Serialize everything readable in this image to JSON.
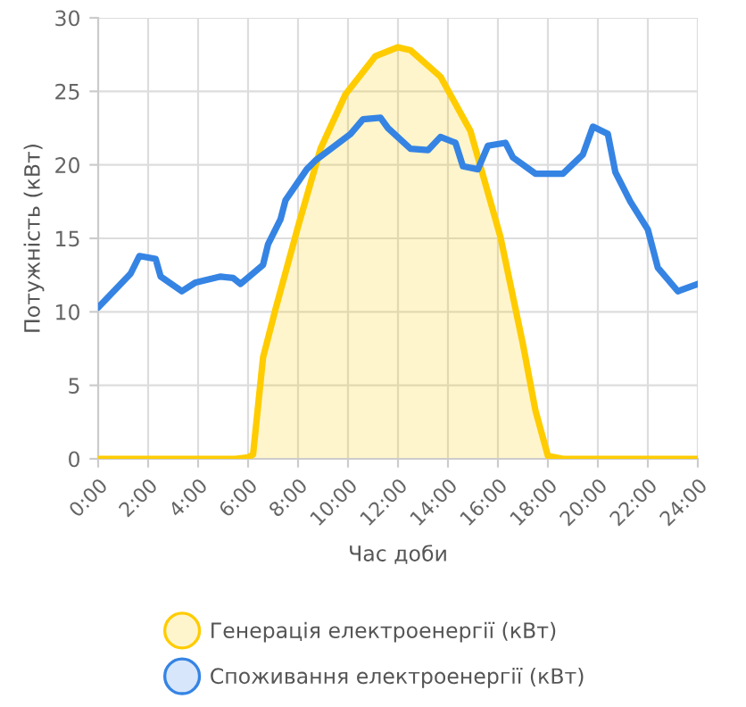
{
  "chart_data": {
    "type": "line",
    "xlabel": "Час доби",
    "ylabel": "Потужність (кВт)",
    "xlim": [
      0,
      24
    ],
    "ylim": [
      0,
      30
    ],
    "xticks": [
      {
        "value": 0,
        "label": "0:00"
      },
      {
        "value": 2,
        "label": "2:00"
      },
      {
        "value": 4,
        "label": "4:00"
      },
      {
        "value": 6,
        "label": "6:00"
      },
      {
        "value": 8,
        "label": "8:00"
      },
      {
        "value": 10,
        "label": "10:00"
      },
      {
        "value": 12,
        "label": "12:00"
      },
      {
        "value": 14,
        "label": "14:00"
      },
      {
        "value": 16,
        "label": "16:00"
      },
      {
        "value": 18,
        "label": "18:00"
      },
      {
        "value": 20,
        "label": "20:00"
      },
      {
        "value": 22,
        "label": "22:00"
      },
      {
        "value": 24,
        "label": "24:00"
      }
    ],
    "yticks": [
      0,
      5,
      10,
      15,
      20,
      25,
      30
    ],
    "grid": true,
    "legend": "bottom",
    "marker": "none",
    "line_style": "solid",
    "series": [
      {
        "name": "Генерація електроенергії (кВт)",
        "type": "area",
        "color": "#ffcc00",
        "x": [
          0,
          2,
          4,
          5.5,
          6,
          6.2,
          6.6,
          7.1,
          8,
          8.9,
          9.9,
          11.1,
          12,
          12.5,
          13.7,
          14.9,
          16.1,
          17,
          17.5,
          18,
          18.6,
          20,
          22,
          24
        ],
        "values": [
          0,
          0,
          0,
          0,
          0.1,
          0.3,
          6.9,
          10.2,
          15.8,
          21.1,
          24.8,
          27.4,
          28.0,
          27.8,
          26.0,
          22.3,
          15.1,
          7.8,
          3.3,
          0.2,
          0,
          0,
          0,
          0
        ]
      },
      {
        "name": "Споживання електроенергії (кВт)",
        "color": "#3584e4",
        "x": [
          0,
          1.3,
          1.65,
          2.3,
          2.5,
          3.35,
          3.9,
          4.9,
          5.4,
          5.7,
          6.6,
          6.8,
          7.3,
          7.5,
          8.35,
          8.7,
          10.1,
          10.6,
          11.3,
          11.6,
          12.5,
          13.2,
          13.7,
          14.3,
          14.6,
          15.2,
          15.6,
          16.3,
          16.6,
          17.5,
          18.6,
          19.4,
          19.8,
          20.4,
          20.7,
          21.3,
          22.0,
          22.4,
          23.2,
          24
        ],
        "values": [
          10.3,
          12.6,
          13.8,
          13.6,
          12.4,
          11.4,
          12.0,
          12.4,
          12.3,
          11.9,
          13.2,
          14.6,
          16.3,
          17.6,
          19.7,
          20.3,
          22.1,
          23.1,
          23.2,
          22.5,
          21.1,
          21.0,
          21.9,
          21.5,
          19.9,
          19.7,
          21.3,
          21.5,
          20.5,
          19.4,
          19.4,
          20.7,
          22.6,
          22.1,
          19.5,
          17.5,
          15.6,
          13.0,
          11.4,
          11.9
        ]
      }
    ]
  }
}
